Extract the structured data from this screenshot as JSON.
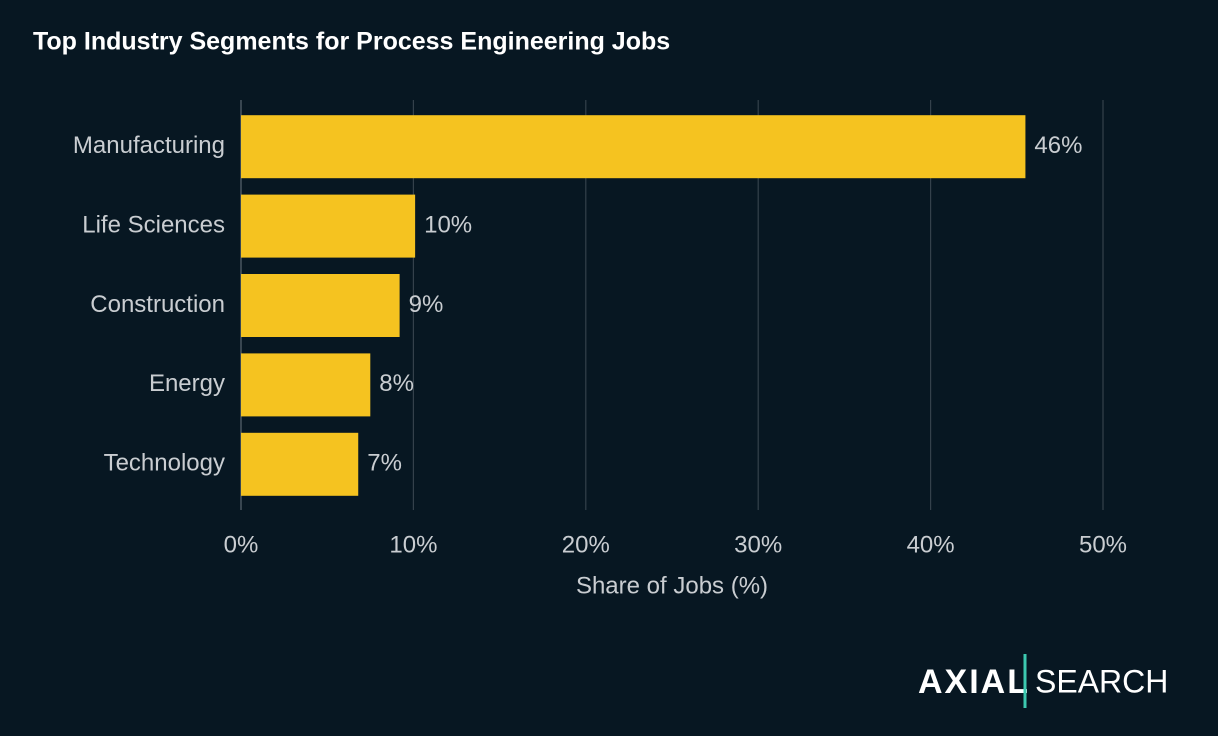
{
  "chart_data": {
    "type": "bar",
    "orientation": "horizontal",
    "title": "Top Industry Segments for Process Engineering Jobs",
    "categories": [
      "Manufacturing",
      "Life Sciences",
      "Construction",
      "Energy",
      "Technology"
    ],
    "values": [
      45.5,
      10.1,
      9.2,
      7.5,
      6.8
    ],
    "value_labels": [
      "46%",
      "10%",
      "9%",
      "8%",
      "7%"
    ],
    "color": "#f5c320",
    "xlabel": "Share of Jobs (%)",
    "xlim": [
      0,
      50
    ],
    "xticks": [
      {
        "value": 0,
        "label": "0%"
      },
      {
        "value": 10,
        "label": "10%"
      },
      {
        "value": 20,
        "label": "20%"
      },
      {
        "value": 30,
        "label": "30%"
      },
      {
        "value": 40,
        "label": "40%"
      },
      {
        "value": 50,
        "label": "50%"
      }
    ],
    "grid": true
  },
  "logo": {
    "brand": "AXIAL",
    "product": "SEARCH"
  }
}
